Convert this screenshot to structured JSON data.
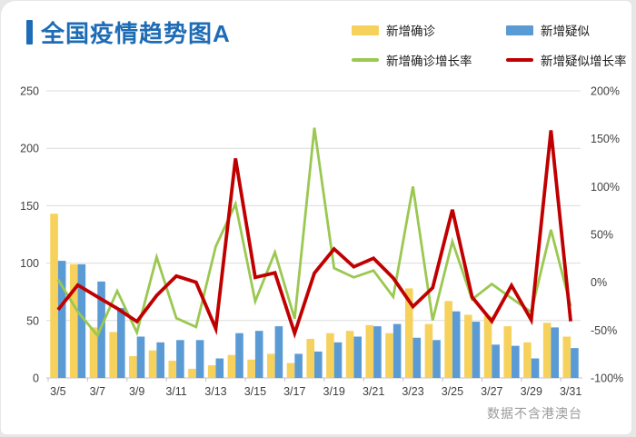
{
  "page": {
    "title": "全国疫情趋势图A",
    "watermark": "数据不含港澳台"
  },
  "colors": {
    "title": "#1e6cb5",
    "confirmed_bar": "#f6d25c",
    "suspected_bar": "#5b9bd5",
    "confirmed_rate_line": "#9ac850",
    "suspected_rate_line": "#c00000",
    "gridline": "#dcdcdc",
    "axis_line": "#c3c3c3",
    "axis_text": "#404040"
  },
  "legend": [
    {
      "label": "新增确诊",
      "type": "bar",
      "color": "#f6d25c"
    },
    {
      "label": "新增疑似",
      "type": "bar",
      "color": "#5b9bd5"
    },
    {
      "label": "新增确诊增长率",
      "type": "line",
      "color": "#9ac850"
    },
    {
      "label": "新增疑似增长率",
      "type": "line",
      "color": "#c00000"
    }
  ],
  "axes": {
    "left_ticks": [
      "0",
      "50",
      "100",
      "150",
      "200",
      "250"
    ],
    "right_ticks": [
      "200%",
      "150%",
      "100%",
      "50%",
      "0%",
      "-50%",
      "-100%"
    ],
    "x_labels": [
      "3/5",
      "3/7",
      "3/9",
      "3/11",
      "3/13",
      "3/15",
      "3/17",
      "3/19",
      "3/21",
      "3/23",
      "3/25",
      "3/27",
      "3/29",
      "3/31"
    ]
  },
  "chart_data": {
    "type": "bar",
    "subtype": "combo bar+line, dual axis",
    "title": "全国疫情趋势图A",
    "categories": [
      "3/5",
      "3/6",
      "3/7",
      "3/8",
      "3/9",
      "3/10",
      "3/11",
      "3/12",
      "3/13",
      "3/14",
      "3/15",
      "3/16",
      "3/17",
      "3/18",
      "3/19",
      "3/20",
      "3/21",
      "3/22",
      "3/23",
      "3/24",
      "3/25",
      "3/26",
      "3/27",
      "3/28",
      "3/29",
      "3/30",
      "3/31"
    ],
    "left_axis": {
      "min": 0,
      "max": 250,
      "step": 50
    },
    "right_axis": {
      "min": -100,
      "max": 200,
      "step": 50,
      "unit": "%"
    },
    "grid": "horizontal only",
    "legend_position": "top",
    "series": [
      {
        "name": "新增确诊",
        "type": "bar",
        "axis": "left",
        "color": "#f6d25c",
        "values": [
          143,
          99,
          44,
          40,
          19,
          24,
          15,
          8,
          11,
          20,
          16,
          21,
          13,
          34,
          39,
          41,
          46,
          39,
          78,
          47,
          67,
          55,
          54,
          45,
          31,
          48,
          36
        ]
      },
      {
        "name": "新增疑似",
        "type": "bar",
        "axis": "left",
        "color": "#5b9bd5",
        "values": [
          102,
          99,
          84,
          61,
          36,
          31,
          33,
          33,
          17,
          39,
          41,
          45,
          21,
          23,
          31,
          36,
          45,
          47,
          35,
          33,
          58,
          49,
          29,
          28,
          17,
          44,
          26
        ]
      },
      {
        "name": "新增确诊增长率",
        "type": "line",
        "axis": "right",
        "unit": "%",
        "color": "#9ac850",
        "values": [
          2.9,
          -30.8,
          -55.6,
          -9.1,
          -52.5,
          26.3,
          -37.5,
          -46.7,
          37.5,
          81.8,
          -20.0,
          31.3,
          -38.1,
          161.5,
          14.7,
          5.1,
          12.2,
          -15.2,
          100.0,
          -39.7,
          42.6,
          -17.9,
          -1.8,
          -16.7,
          -31.1,
          54.8,
          -25.0
        ]
      },
      {
        "name": "新增疑似增长率",
        "type": "line",
        "axis": "right",
        "unit": "%",
        "color": "#c00000",
        "values": [
          -28.7,
          -2.9,
          -15.2,
          -27.4,
          -41.0,
          -13.9,
          6.5,
          0.0,
          -48.5,
          129.4,
          5.1,
          9.8,
          -53.3,
          9.5,
          34.8,
          16.1,
          25.0,
          4.4,
          -25.5,
          -5.7,
          75.8,
          -15.5,
          -40.8,
          -3.4,
          -39.3,
          158.8,
          -40.9
        ]
      }
    ]
  }
}
